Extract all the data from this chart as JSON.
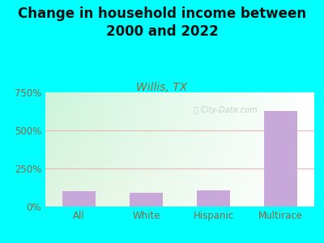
{
  "title": "Change in household income between\n2000 and 2022",
  "subtitle": "Willis, TX",
  "categories": [
    "All",
    "White",
    "Hispanic",
    "Multirace"
  ],
  "values": [
    100,
    88,
    105,
    630
  ],
  "bar_color": "#c8a8d8",
  "title_fontsize": 12,
  "subtitle_fontsize": 10,
  "subtitle_color": "#996633",
  "tick_label_color": "#886644",
  "background_outer": "#00ffff",
  "grid_color": "#e8b8b8",
  "ylim": [
    0,
    750
  ],
  "yticks": [
    0,
    250,
    500,
    750
  ],
  "ytick_labels": [
    "0%",
    "250%",
    "500%",
    "750%"
  ],
  "watermark": "City-Data.com"
}
